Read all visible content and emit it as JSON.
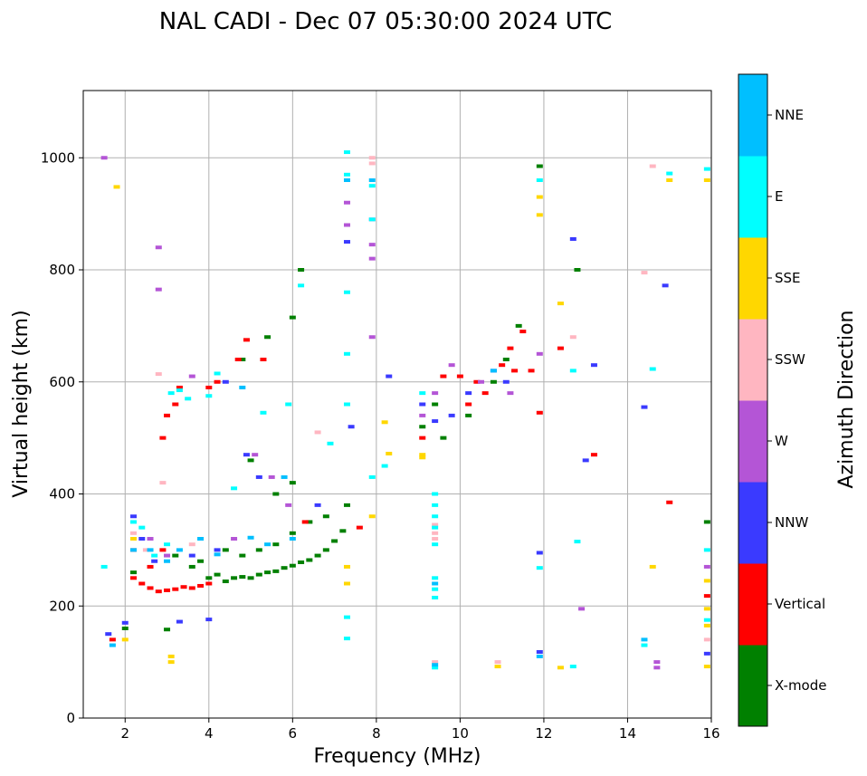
{
  "chart_data": {
    "type": "scatter",
    "title": "NAL CADI - Dec 07 05:30:00 2024 UTC",
    "xlabel": "Frequency (MHz)",
    "ylabel": "Virtual height (km)",
    "xlim": [
      1,
      16
    ],
    "ylim": [
      0,
      1120
    ],
    "xticks": [
      2,
      4,
      6,
      8,
      10,
      12,
      14,
      16
    ],
    "yticks": [
      0,
      200,
      400,
      600,
      800,
      1000
    ],
    "grid": true,
    "colorbar": {
      "label": "Azimuth Direction",
      "categories": [
        {
          "name": "X-mode",
          "color": "#008000"
        },
        {
          "name": "Vertical",
          "color": "#ff0000"
        },
        {
          "name": "NNW",
          "color": "#3a3aff"
        },
        {
          "name": "W",
          "color": "#b455d6"
        },
        {
          "name": "SSW",
          "color": "#ffb6c1"
        },
        {
          "name": "SSE",
          "color": "#ffd700"
        },
        {
          "name": "E",
          "color": "#00ffff"
        },
        {
          "name": "NNE",
          "color": "#00bfff"
        }
      ]
    },
    "series": [
      {
        "name": "X-mode",
        "points": [
          [
            2.0,
            160
          ],
          [
            2.2,
            260
          ],
          [
            3.0,
            158
          ],
          [
            3.2,
            290
          ],
          [
            3.6,
            270
          ],
          [
            4.0,
            250
          ],
          [
            4.2,
            256
          ],
          [
            4.4,
            244
          ],
          [
            4.6,
            250
          ],
          [
            4.8,
            252
          ],
          [
            5.0,
            250
          ],
          [
            5.2,
            256
          ],
          [
            5.4,
            260
          ],
          [
            5.6,
            262
          ],
          [
            5.8,
            268
          ],
          [
            6.0,
            272
          ],
          [
            6.2,
            278
          ],
          [
            6.4,
            282
          ],
          [
            6.6,
            290
          ],
          [
            6.8,
            300
          ],
          [
            7.0,
            316
          ],
          [
            7.2,
            334
          ],
          [
            7.3,
            380
          ],
          [
            3.8,
            280
          ],
          [
            4.4,
            300
          ],
          [
            4.8,
            290
          ],
          [
            5.2,
            300
          ],
          [
            5.6,
            310
          ],
          [
            6.0,
            330
          ],
          [
            6.4,
            350
          ],
          [
            6.8,
            360
          ],
          [
            5.6,
            400
          ],
          [
            6.0,
            420
          ],
          [
            6.2,
            800
          ],
          [
            6.0,
            715
          ],
          [
            5.0,
            460
          ],
          [
            9.1,
            520
          ],
          [
            9.6,
            500
          ],
          [
            10.2,
            540
          ],
          [
            10.8,
            600
          ],
          [
            11.1,
            640
          ],
          [
            11.4,
            700
          ],
          [
            11.9,
            985
          ],
          [
            12.8,
            800
          ],
          [
            15.9,
            350
          ],
          [
            9.4,
            560
          ],
          [
            4.8,
            640
          ],
          [
            5.4,
            680
          ]
        ]
      },
      {
        "name": "Vertical",
        "points": [
          [
            1.7,
            140
          ],
          [
            2.2,
            250
          ],
          [
            2.2,
            300
          ],
          [
            2.4,
            240
          ],
          [
            2.6,
            232
          ],
          [
            2.8,
            226
          ],
          [
            3.0,
            228
          ],
          [
            3.2,
            230
          ],
          [
            3.4,
            234
          ],
          [
            3.6,
            232
          ],
          [
            3.8,
            236
          ],
          [
            4.0,
            240
          ],
          [
            2.6,
            270
          ],
          [
            2.9,
            300
          ],
          [
            3.0,
            540
          ],
          [
            3.2,
            560
          ],
          [
            4.0,
            590
          ],
          [
            4.2,
            600
          ],
          [
            4.7,
            640
          ],
          [
            4.9,
            675
          ],
          [
            5.3,
            640
          ],
          [
            3.3,
            590
          ],
          [
            9.1,
            500
          ],
          [
            9.6,
            610
          ],
          [
            10.0,
            610
          ],
          [
            10.2,
            560
          ],
          [
            10.4,
            600
          ],
          [
            10.6,
            580
          ],
          [
            11.0,
            630
          ],
          [
            11.2,
            660
          ],
          [
            11.3,
            620
          ],
          [
            11.5,
            690
          ],
          [
            11.7,
            620
          ],
          [
            11.9,
            545
          ],
          [
            12.4,
            660
          ],
          [
            13.2,
            470
          ],
          [
            15.0,
            385
          ],
          [
            15.9,
            218
          ],
          [
            2.9,
            500
          ],
          [
            6.3,
            350
          ],
          [
            7.6,
            340
          ]
        ]
      },
      {
        "name": "NNW",
        "points": [
          [
            1.6,
            150
          ],
          [
            2.0,
            170
          ],
          [
            2.2,
            360
          ],
          [
            2.4,
            320
          ],
          [
            2.7,
            280
          ],
          [
            3.3,
            172
          ],
          [
            3.6,
            290
          ],
          [
            4.0,
            176
          ],
          [
            4.2,
            300
          ],
          [
            4.4,
            600
          ],
          [
            4.9,
            470
          ],
          [
            5.2,
            430
          ],
          [
            6.6,
            380
          ],
          [
            7.3,
            850
          ],
          [
            8.3,
            610
          ],
          [
            9.1,
            560
          ],
          [
            9.4,
            530
          ],
          [
            9.8,
            540
          ],
          [
            10.2,
            580
          ],
          [
            10.8,
            620
          ],
          [
            11.1,
            600
          ],
          [
            11.9,
            295
          ],
          [
            12.7,
            855
          ],
          [
            13.0,
            460
          ],
          [
            13.2,
            630
          ],
          [
            14.4,
            555
          ],
          [
            14.9,
            772
          ],
          [
            15.9,
            115
          ],
          [
            11.9,
            118
          ],
          [
            7.4,
            520
          ]
        ]
      },
      {
        "name": "W",
        "points": [
          [
            1.5,
            1000
          ],
          [
            2.8,
            840
          ],
          [
            2.8,
            765
          ],
          [
            3.6,
            610
          ],
          [
            4.6,
            320
          ],
          [
            5.1,
            470
          ],
          [
            5.5,
            430
          ],
          [
            5.9,
            380
          ],
          [
            7.3,
            920
          ],
          [
            7.3,
            880
          ],
          [
            7.9,
            890
          ],
          [
            7.9,
            845
          ],
          [
            7.9,
            820
          ],
          [
            7.9,
            680
          ],
          [
            9.1,
            540
          ],
          [
            9.4,
            580
          ],
          [
            9.8,
            630
          ],
          [
            10.5,
            600
          ],
          [
            11.2,
            580
          ],
          [
            11.9,
            650
          ],
          [
            12.9,
            195
          ],
          [
            14.7,
            90
          ],
          [
            14.7,
            100
          ],
          [
            15.9,
            270
          ],
          [
            2.6,
            320
          ],
          [
            3.0,
            290
          ]
        ]
      },
      {
        "name": "SSW",
        "points": [
          [
            2.2,
            330
          ],
          [
            2.5,
            300
          ],
          [
            2.9,
            420
          ],
          [
            2.8,
            614
          ],
          [
            3.6,
            310
          ],
          [
            6.6,
            510
          ],
          [
            7.9,
            1000
          ],
          [
            7.9,
            990
          ],
          [
            9.4,
            100
          ],
          [
            9.4,
            330
          ],
          [
            9.4,
            320
          ],
          [
            10.9,
            100
          ],
          [
            12.7,
            680
          ],
          [
            14.6,
            985
          ],
          [
            14.4,
            795
          ],
          [
            15.9,
            140
          ],
          [
            9.4,
            345
          ]
        ]
      },
      {
        "name": "SSE",
        "points": [
          [
            1.8,
            948
          ],
          [
            2.0,
            140
          ],
          [
            3.1,
            100
          ],
          [
            3.1,
            110
          ],
          [
            7.3,
            270
          ],
          [
            7.3,
            240
          ],
          [
            8.2,
            528
          ],
          [
            8.3,
            472
          ],
          [
            9.1,
            470
          ],
          [
            9.1,
            465
          ],
          [
            10.9,
            92
          ],
          [
            11.9,
            930
          ],
          [
            11.9,
            898
          ],
          [
            12.4,
            740
          ],
          [
            12.4,
            90
          ],
          [
            15.0,
            960
          ],
          [
            15.9,
            960
          ],
          [
            15.9,
            245
          ],
          [
            15.9,
            195
          ],
          [
            15.9,
            165
          ],
          [
            15.9,
            92
          ],
          [
            14.6,
            270
          ],
          [
            7.9,
            360
          ],
          [
            2.2,
            320
          ]
        ]
      },
      {
        "name": "E",
        "points": [
          [
            1.5,
            270
          ],
          [
            2.2,
            350
          ],
          [
            2.4,
            340
          ],
          [
            3.1,
            580
          ],
          [
            3.3,
            585
          ],
          [
            3.5,
            570
          ],
          [
            4.0,
            575
          ],
          [
            4.2,
            615
          ],
          [
            4.6,
            410
          ],
          [
            5.3,
            545
          ],
          [
            5.9,
            560
          ],
          [
            6.2,
            772
          ],
          [
            6.9,
            490
          ],
          [
            7.3,
            1010
          ],
          [
            7.3,
            970
          ],
          [
            7.3,
            760
          ],
          [
            7.3,
            650
          ],
          [
            7.3,
            560
          ],
          [
            7.3,
            180
          ],
          [
            7.3,
            142
          ],
          [
            7.9,
            950
          ],
          [
            7.9,
            430
          ],
          [
            8.2,
            450
          ],
          [
            9.1,
            580
          ],
          [
            9.4,
            400
          ],
          [
            9.4,
            380
          ],
          [
            9.4,
            360
          ],
          [
            9.4,
            340
          ],
          [
            9.4,
            310
          ],
          [
            9.4,
            250
          ],
          [
            9.4,
            230
          ],
          [
            9.4,
            215
          ],
          [
            9.4,
            90
          ],
          [
            11.9,
            960
          ],
          [
            11.9,
            268
          ],
          [
            12.7,
            620
          ],
          [
            12.8,
            315
          ],
          [
            12.7,
            92
          ],
          [
            14.4,
            130
          ],
          [
            14.6,
            623
          ],
          [
            15.0,
            972
          ],
          [
            15.9,
            980
          ],
          [
            15.9,
            300
          ],
          [
            15.9,
            175
          ],
          [
            7.9,
            890
          ],
          [
            3.0,
            310
          ],
          [
            2.7,
            290
          ]
        ]
      },
      {
        "name": "NNE",
        "points": [
          [
            1.7,
            130
          ],
          [
            2.2,
            300
          ],
          [
            2.6,
            300
          ],
          [
            3.0,
            280
          ],
          [
            3.3,
            300
          ],
          [
            3.8,
            320
          ],
          [
            4.2,
            292
          ],
          [
            5.0,
            322
          ],
          [
            5.4,
            310
          ],
          [
            6.0,
            320
          ],
          [
            7.3,
            960
          ],
          [
            7.9,
            960
          ],
          [
            9.4,
            240
          ],
          [
            9.4,
            95
          ],
          [
            10.8,
            620
          ],
          [
            11.9,
            110
          ],
          [
            14.4,
            140
          ],
          [
            4.8,
            590
          ],
          [
            5.8,
            430
          ]
        ]
      }
    ]
  }
}
